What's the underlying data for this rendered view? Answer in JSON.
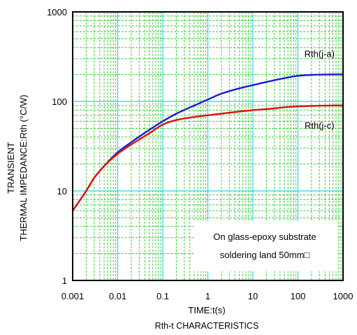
{
  "chart_data": {
    "type": "line",
    "title": "",
    "caption": "Rth-t CHARACTERISTICS",
    "xlabel": "TIME:t(s)",
    "ylabel_lines": [
      "TRANSIENT",
      "THERMAL IMPEDANCE:Rth (°C/W)"
    ],
    "x_scale": "log",
    "y_scale": "log",
    "xlim": [
      0.001,
      1000
    ],
    "ylim": [
      1,
      1000
    ],
    "x_ticks": [
      "0.001",
      "0.01",
      "0.1",
      "1",
      "10",
      "100",
      "1000"
    ],
    "y_ticks": [
      "1",
      "10",
      "100",
      "1000"
    ],
    "grid": true,
    "annotation_lines": [
      "On glass-epoxy substrate",
      "soldering land 50mm□"
    ],
    "series": [
      {
        "name": "Rth(j-a)",
        "color": "#1a1ad6",
        "x": [
          0.001,
          0.002,
          0.003,
          0.005,
          0.01,
          0.02,
          0.05,
          0.1,
          0.2,
          0.5,
          1,
          2,
          5,
          10,
          20,
          50,
          100,
          200,
          500,
          1000
        ],
        "y": [
          6,
          10,
          14,
          19,
          27,
          35,
          48,
          60,
          73,
          90,
          105,
          122,
          140,
          152,
          165,
          182,
          193,
          198,
          200,
          200
        ]
      },
      {
        "name": "Rth(j-c)",
        "color": "#e01010",
        "x": [
          0.001,
          0.002,
          0.003,
          0.005,
          0.01,
          0.02,
          0.05,
          0.1,
          0.2,
          0.5,
          1,
          2,
          5,
          10,
          20,
          50,
          100,
          200,
          500,
          1000
        ],
        "y": [
          6,
          10,
          14,
          19,
          26,
          33,
          44,
          55,
          62,
          67,
          70,
          73,
          77,
          80,
          82,
          86,
          88,
          89,
          90,
          90
        ]
      }
    ]
  }
}
